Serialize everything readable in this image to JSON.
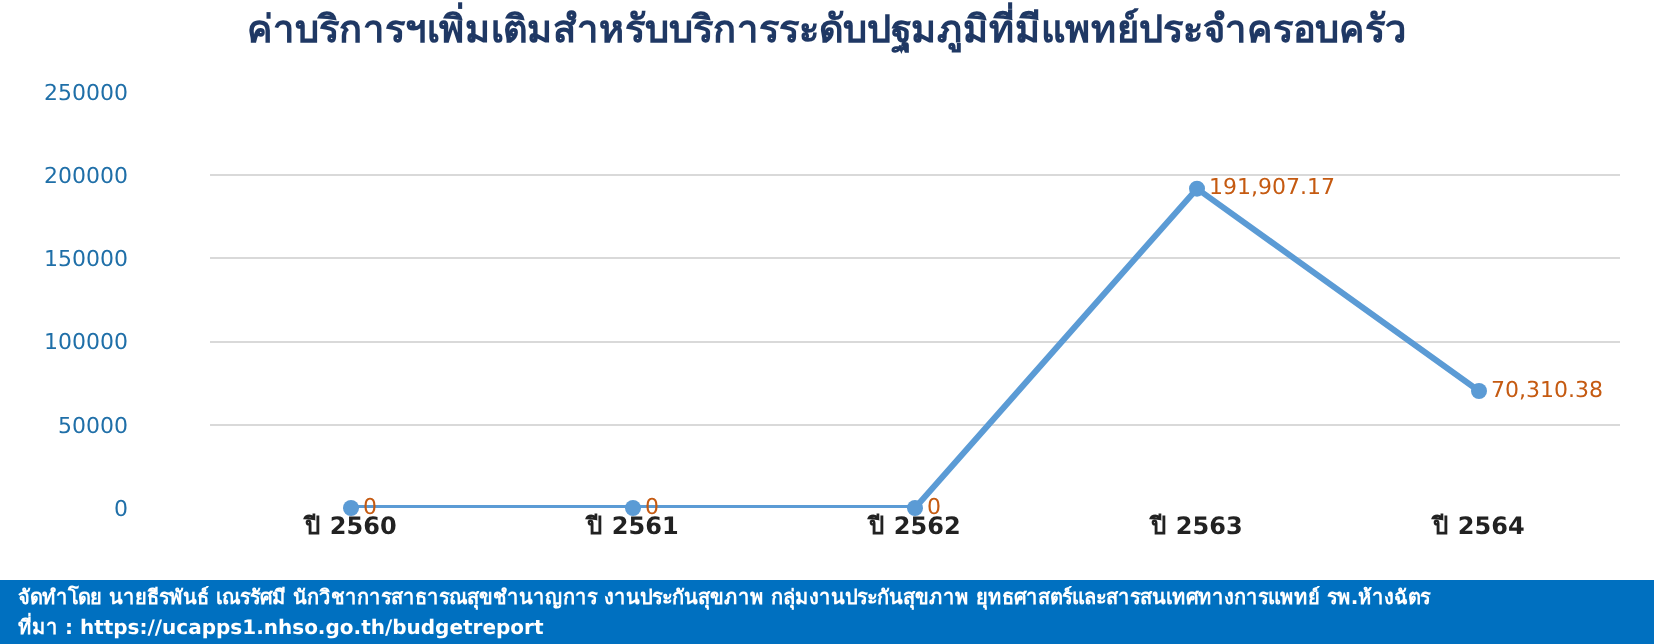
{
  "chart_data": {
    "type": "line",
    "title": "ค่าบริการฯเพิ่มเติมสำหรับบริการระดับปฐมภูมิที่มีแพทย์ประจำครอบครัว",
    "categories": [
      "ปี 2560",
      "ปี 2561",
      "ปี 2562",
      "ปี 2563",
      "ปี 2564"
    ],
    "series": [
      {
        "color": "#5b9bd5",
        "values": [
          0,
          0,
          0,
          191907.17,
          70310.38
        ],
        "value_labels": [
          "0",
          "0",
          "0",
          "191,907.17",
          "70,310.38"
        ]
      }
    ],
    "ylim": [
      0,
      250000
    ],
    "yticks": [
      0,
      50000,
      100000,
      150000,
      200000,
      250000
    ],
    "grid": "y",
    "legend": false,
    "marker": "circle",
    "line_style": "solid",
    "annotations": [
      "จัดทำโดย นายธีรพันธ์ เณรรัศมี นักวิชาการสาธารณสุขชำนาญการ งานประกันสุขภาพ กลุ่มงานประกันสุขภาพ ยุทธศาสตร์และสารสนเทศทางการแพทย์ รพ.ห้างฉัตร",
      "ที่มา : https://ucapps1.nhso.go.th/budgetreport"
    ]
  }
}
